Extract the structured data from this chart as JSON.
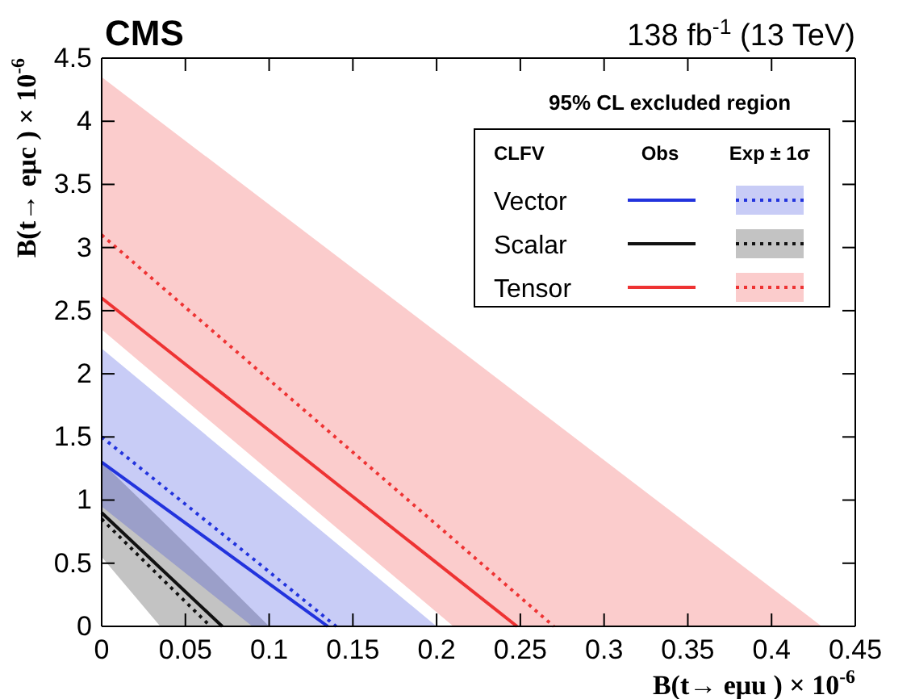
{
  "chart_data": {
    "type": "line",
    "title": "CMS",
    "subtitle": "138 fb$^{-1}$ (13 TeV)",
    "xlabel": "B(t→ eμu ) × 10$^{-6}$",
    "ylabel": "B(t→ eμc ) × 10$^{-6}$",
    "legend_title": "CLFV",
    "annotations": [
      "95% CL excluded region",
      "Obs",
      "Exp ± 1σ"
    ],
    "legend": "top right",
    "xlim": [
      0,
      0.45
    ],
    "ylim": [
      0,
      4.5
    ],
    "xticks": [
      0,
      0.05,
      0.1,
      0.15,
      0.2,
      0.25,
      0.3,
      0.35,
      0.4,
      0.45
    ],
    "yticks": [
      0,
      0.5,
      1,
      1.5,
      2,
      2.5,
      3,
      3.5,
      4,
      4.5
    ],
    "series": [
      {
        "name": "Vector",
        "color": "#2233dd",
        "line_style": "solid",
        "x": [
          0,
          0.135
        ],
        "values": [
          1.3,
          0
        ]
      },
      {
        "color": "#2233dd",
        "line_style": "dotted",
        "x": [
          0,
          0.09,
          0.14,
          0.2
        ],
        "values": [
          1.5,
          0.54,
          0,
          null
        ],
        "lower": [
          0.95,
          0,
          0,
          0
        ],
        "upper": [
          2.2,
          1.21,
          0.66,
          0
        ]
      },
      {
        "name": "Scalar",
        "color": "#111111",
        "line_style": "solid",
        "x": [
          0,
          0.072
        ],
        "values": [
          0.9,
          0
        ]
      },
      {
        "color": "#111111",
        "line_style": "dotted",
        "x": [
          0,
          0.035,
          0.065,
          0.1
        ],
        "values": [
          0.85,
          0.39,
          0,
          null
        ],
        "lower": [
          0.55,
          0,
          0,
          0
        ],
        "upper": [
          1.3,
          0.85,
          0.46,
          0
        ]
      },
      {
        "name": "Tensor",
        "color": "#ee3333",
        "line_style": "solid",
        "x": [
          0,
          0.248
        ],
        "values": [
          2.6,
          0
        ]
      },
      {
        "color": "#ee3333",
        "line_style": "dotted",
        "x": [
          0,
          0.21,
          0.27,
          0.43
        ],
        "values": [
          3.1,
          0.69,
          0,
          null
        ],
        "lower": [
          2.35,
          0,
          0,
          0
        ],
        "upper": [
          4.35,
          2.23,
          1.62,
          0
        ]
      }
    ]
  }
}
